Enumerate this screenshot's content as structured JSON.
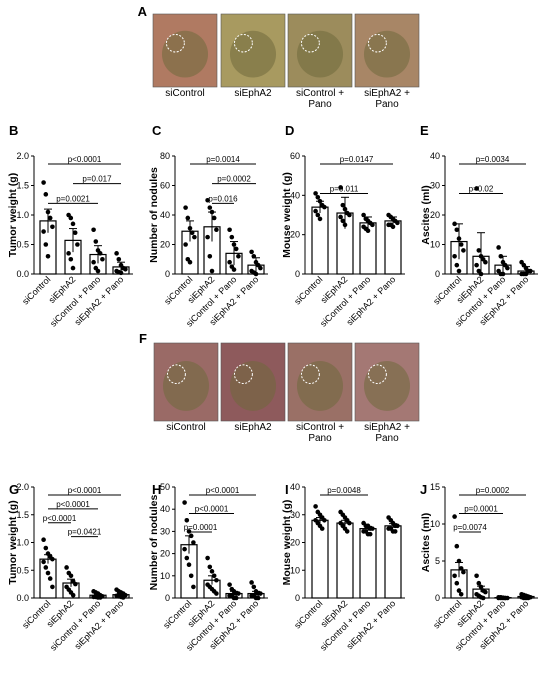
{
  "photo_rows": [
    {
      "label": "A",
      "captions": [
        [
          "siControl"
        ],
        [
          "siEphA2"
        ],
        [
          "siControl +",
          "Pano"
        ],
        [
          "siEphA2 +",
          "Pano"
        ]
      ],
      "colors": [
        "#b07a62",
        "#a89a60",
        "#9c8c5c",
        "#a88666"
      ]
    },
    {
      "label": "F",
      "captions": [
        [
          "siControl"
        ],
        [
          "siEphA2"
        ],
        [
          "siControl +",
          "Pano"
        ],
        [
          "siEphA2 +",
          "Pano"
        ]
      ],
      "colors": [
        "#9a6a66",
        "#8e5a5c",
        "#9a7066",
        "#a47874"
      ]
    }
  ],
  "chart_data": [
    {
      "label": "B",
      "type": "bar",
      "ylabel": "Tumor weight (g)",
      "categories": [
        "siControl",
        "siEphA2",
        "siControl + Pano",
        "siEphA2 + Pano"
      ],
      "values": [
        0.9,
        0.57,
        0.33,
        0.12
      ],
      "errors": [
        0.2,
        0.2,
        0.15,
        0.08
      ],
      "ylim": [
        0,
        2
      ],
      "yticks": [
        0,
        0.5,
        1,
        1.5,
        2
      ],
      "ytick_labels": [
        "0.0",
        "0.5",
        "1.0",
        "1.5",
        "2.0"
      ],
      "points": [
        [
          1.55,
          1.35,
          1.05,
          0.95,
          0.8,
          0.72,
          0.5,
          0.3
        ],
        [
          1.0,
          0.95,
          0.85,
          0.7,
          0.5,
          0.35,
          0.25,
          0.1
        ],
        [
          0.75,
          0.55,
          0.4,
          0.35,
          0.25,
          0.2,
          0.1,
          0.05
        ],
        [
          0.35,
          0.25,
          0.15,
          0.1,
          0.08,
          0.05,
          0.03,
          0.02
        ]
      ],
      "comparisons": [
        {
          "p": "p<0.0001",
          "to": 3
        },
        {
          "p": "p=0.017",
          "to": 3,
          "from": 1
        },
        {
          "p": "p=0.0021",
          "to": 2
        }
      ]
    },
    {
      "label": "C",
      "type": "bar",
      "ylabel": "Number of nodules",
      "categories": [
        "siControl",
        "siEphA2",
        "siControl + Pano",
        "siEphA2 + Pano"
      ],
      "values": [
        29,
        32,
        14,
        6
      ],
      "errors": [
        7,
        10,
        8,
        5
      ],
      "ylim": [
        0,
        80
      ],
      "yticks": [
        0,
        20,
        40,
        60,
        80
      ],
      "ytick_labels": [
        "0",
        "20",
        "40",
        "60",
        "80"
      ],
      "points": [
        [
          45,
          38,
          31,
          28,
          25,
          20,
          10,
          8
        ],
        [
          50,
          45,
          42,
          38,
          30,
          25,
          12,
          2
        ],
        [
          30,
          25,
          20,
          17,
          12,
          8,
          5,
          3
        ],
        [
          15,
          12,
          8,
          6,
          4,
          2,
          1,
          0
        ]
      ],
      "comparisons": [
        {
          "p": "p=0.0014",
          "to": 3
        },
        {
          "p": "p=0.0002",
          "to": 3,
          "from": 1
        },
        {
          "p": "p=0.016",
          "to": 2,
          "from": 1
        }
      ]
    },
    {
      "label": "D",
      "type": "bar",
      "ylabel": "Mouse weight (g)",
      "categories": [
        "siControl",
        "siEphA2",
        "siControl + Pano",
        "siEphA2 + Pano"
      ],
      "values": [
        34,
        31,
        26,
        27
      ],
      "errors": [
        3,
        8,
        3,
        2
      ],
      "ylim": [
        0,
        60
      ],
      "yticks": [
        0,
        20,
        40,
        60
      ],
      "ytick_labels": [
        "0",
        "20",
        "40",
        "60"
      ],
      "points": [
        [
          41,
          39,
          37,
          35,
          34,
          32,
          30,
          28
        ],
        [
          44,
          35,
          33,
          31,
          30,
          29,
          27,
          25
        ],
        [
          30,
          28,
          27,
          26,
          25,
          24,
          23,
          22
        ],
        [
          30,
          29,
          28,
          27,
          26,
          25,
          25,
          24
        ]
      ],
      "comparisons": [
        {
          "p": "p=0.0147",
          "to": 3
        },
        {
          "p": "p=0.011",
          "to": 2
        }
      ]
    },
    {
      "label": "E",
      "type": "bar",
      "ylabel": "Ascites (ml)",
      "categories": [
        "siControl",
        "siEphA2",
        "siControl + Pano",
        "siEphA2 + Pano"
      ],
      "values": [
        11,
        6,
        3,
        1
      ],
      "errors": [
        6,
        8,
        3,
        1.5
      ],
      "ylim": [
        0,
        40
      ],
      "yticks": [
        0,
        10,
        20,
        30,
        40
      ],
      "ytick_labels": [
        "0",
        "10",
        "20",
        "30",
        "40"
      ],
      "points": [
        [
          17,
          15,
          12,
          10,
          8,
          6,
          3,
          1
        ],
        [
          29,
          8,
          6,
          5,
          4,
          3,
          1,
          0
        ],
        [
          9,
          6,
          4,
          3,
          2,
          1,
          0,
          0
        ],
        [
          4,
          3,
          2,
          1,
          1,
          0,
          0,
          0
        ]
      ],
      "comparisons": [
        {
          "p": "p=0.0034",
          "to": 3
        },
        {
          "p": "p=0.02",
          "to": 2
        }
      ]
    },
    {
      "label": "G",
      "type": "bar",
      "ylabel": "Tumor weight (g)",
      "categories": [
        "siControl",
        "siEphA2",
        "siControl + Pano",
        "siEphA2 + Pano"
      ],
      "values": [
        0.7,
        0.27,
        0.05,
        0.06
      ],
      "errors": [
        0.08,
        0.07,
        0.02,
        0.02
      ],
      "ylim": [
        0,
        2
      ],
      "yticks": [
        0,
        0.5,
        1,
        1.5,
        2
      ],
      "ytick_labels": [
        "0.0",
        "0.5",
        "1.0",
        "1.5",
        "2.0"
      ],
      "points": [
        [
          1.05,
          0.9,
          0.8,
          0.75,
          0.7,
          0.65,
          0.55,
          0.45,
          0.35,
          0.2
        ],
        [
          0.55,
          0.45,
          0.4,
          0.3,
          0.25,
          0.2,
          0.15,
          0.1,
          0.05
        ],
        [
          0.12,
          0.1,
          0.08,
          0.05,
          0.03,
          0.02,
          0.02,
          0.01,
          0.01
        ],
        [
          0.15,
          0.12,
          0.1,
          0.08,
          0.05,
          0.04,
          0.03,
          0.02,
          0.01
        ]
      ],
      "comparisons": [
        {
          "p": "p<0.0001",
          "to": 3
        },
        {
          "p": "p<0.0001",
          "to": 2
        },
        {
          "p": "p<0.0001",
          "to": 1
        },
        {
          "p": "p=0.0421",
          "to": 2,
          "from": 1
        }
      ]
    },
    {
      "label": "H",
      "type": "bar",
      "ylabel": "Number of nodules",
      "categories": [
        "siControl",
        "siEphA2",
        "siControl + Pano",
        "siEphA2 + Pano"
      ],
      "values": [
        24,
        8,
        2,
        2
      ],
      "errors": [
        4,
        2,
        1,
        1
      ],
      "ylim": [
        0,
        50
      ],
      "yticks": [
        0,
        10,
        20,
        30,
        40,
        50
      ],
      "ytick_labels": [
        "0",
        "10",
        "20",
        "30",
        "40",
        "50"
      ],
      "points": [
        [
          43,
          35,
          30,
          28,
          25,
          22,
          18,
          15,
          10,
          5
        ],
        [
          18,
          14,
          12,
          10,
          8,
          6,
          5,
          4,
          3,
          2
        ],
        [
          6,
          4,
          3,
          2,
          2,
          1,
          1,
          0,
          0
        ],
        [
          7,
          5,
          3,
          2,
          2,
          1,
          1,
          0,
          0
        ]
      ],
      "comparisons": [
        {
          "p": "p<0.0001",
          "to": 3
        },
        {
          "p": "p<0.0001",
          "to": 2
        },
        {
          "p": "p=0.0001",
          "to": 1
        }
      ]
    },
    {
      "label": "I",
      "type": "bar",
      "ylabel": "Mouse weight (g)",
      "categories": [
        "siControl",
        "siEphA2",
        "siControl + Pano",
        "siEphA2 + Pano"
      ],
      "values": [
        28,
        27,
        25,
        26
      ],
      "errors": [
        1,
        1,
        0.8,
        0.8
      ],
      "ylim": [
        0,
        40
      ],
      "yticks": [
        0,
        10,
        20,
        30,
        40
      ],
      "ytick_labels": [
        "0",
        "10",
        "20",
        "30",
        "40"
      ],
      "points": [
        [
          33,
          31,
          30,
          29,
          28,
          28,
          27,
          26,
          25
        ],
        [
          31,
          30,
          29,
          28,
          27,
          27,
          26,
          25,
          24
        ],
        [
          27,
          26,
          26,
          25,
          25,
          24,
          24,
          23,
          23
        ],
        [
          29,
          28,
          27,
          26,
          26,
          25,
          25,
          24,
          24
        ]
      ],
      "comparisons": [
        {
          "p": "p=0.0048",
          "to": 2
        }
      ]
    },
    {
      "label": "J",
      "type": "bar",
      "ylabel": "Ascites (ml)",
      "categories": [
        "siControl",
        "siEphA2",
        "siControl + Pano",
        "siEphA2 + Pano"
      ],
      "values": [
        3.8,
        1.2,
        0.05,
        0.2
      ],
      "errors": [
        1,
        0.4,
        0.05,
        0.1
      ],
      "ylim": [
        0,
        15
      ],
      "yticks": [
        0,
        5,
        10,
        15
      ],
      "ytick_labels": [
        "0",
        "5",
        "10",
        "15"
      ],
      "points": [
        [
          11,
          7,
          5,
          4,
          3.5,
          3,
          2,
          1,
          0.5
        ],
        [
          3,
          2,
          1.5,
          1,
          0.8,
          0.5,
          0.3,
          0.1,
          0
        ],
        [
          0.1,
          0.1,
          0.05,
          0,
          0,
          0,
          0,
          0,
          0
        ],
        [
          0.5,
          0.4,
          0.3,
          0.2,
          0.1,
          0.1,
          0,
          0,
          0
        ]
      ],
      "comparisons": [
        {
          "p": "p=0.0002",
          "to": 3
        },
        {
          "p": "p=0.0001",
          "to": 2
        },
        {
          "p": "p=0.0074",
          "to": 1
        }
      ]
    }
  ]
}
